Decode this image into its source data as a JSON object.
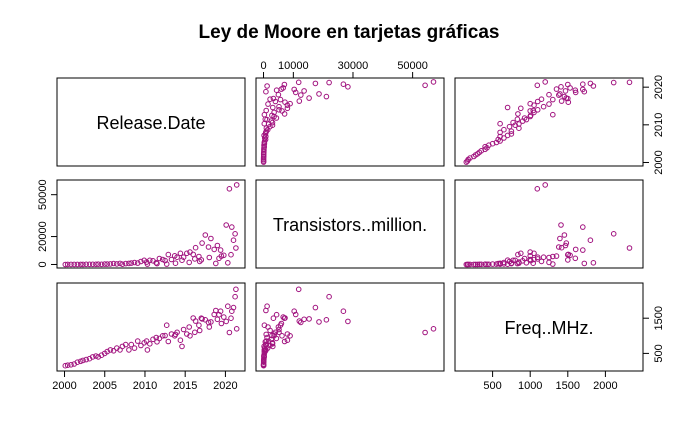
{
  "chart_data": {
    "type": "scatter",
    "title": "Ley de Moore en tarjetas gráficas",
    "variables": [
      {
        "name": "Release.Date",
        "min": 2000,
        "max": 2021.5,
        "ticks": [
          2000,
          2005,
          2010,
          2015,
          2020
        ],
        "tick_labels": [
          "2000",
          "2005",
          "2010",
          "2015",
          "2020"
        ]
      },
      {
        "name": "Transistors..million.",
        "min": 0,
        "max": 58000,
        "ticks": [
          0,
          10000,
          20000,
          30000,
          50000
        ],
        "tick_labels": [
          "0",
          "10000",
          "20000",
          "30000",
          "50000"
        ]
      },
      {
        "name": "Freq..MHz.",
        "min": 100,
        "max": 2400,
        "ticks": [
          500,
          1000,
          1500,
          2000
        ],
        "tick_labels": [
          "500",
          "1000",
          "1500",
          "2000"
        ]
      }
    ],
    "axis_ticks": {
      "top": {
        "variable": 1,
        "ticks": [
          0,
          10000,
          30000,
          50000
        ],
        "tick_labels": [
          "0",
          "10000",
          "30000",
          "50000"
        ]
      },
      "left_1": {
        "variable": 1,
        "ticks": [
          0,
          20000,
          50000
        ],
        "tick_labels": [
          "0",
          "20000",
          "50000"
        ]
      },
      "right_0": {
        "variable": 0,
        "ticks": [
          2000,
          2010,
          2020
        ],
        "tick_labels": [
          "2000",
          "2010",
          "2020"
        ]
      },
      "right_2": {
        "variable": 2,
        "ticks": [
          500,
          1500
        ],
        "tick_labels": [
          "500",
          "1500"
        ]
      },
      "bottom_0": {
        "variable": 0,
        "ticks": [
          2000,
          2005,
          2010,
          2015,
          2020
        ],
        "tick_labels": [
          "2000",
          "2005",
          "2010",
          "2015",
          "2020"
        ]
      },
      "bottom_2": {
        "variable": 2,
        "ticks": [
          500,
          1000,
          1500,
          2000
        ],
        "tick_labels": [
          "500",
          "1000",
          "1500",
          "2000"
        ]
      }
    },
    "point_color": "#a1137f",
    "points": [
      [
        2000.1,
        20,
        150
      ],
      [
        2000.4,
        25,
        166
      ],
      [
        2000.8,
        30,
        175
      ],
      [
        2001.2,
        40,
        200
      ],
      [
        2001.6,
        57,
        250
      ],
      [
        2002.0,
        63,
        275
      ],
      [
        2002.3,
        76,
        300
      ],
      [
        2002.7,
        107,
        325
      ],
      [
        2003.1,
        125,
        350
      ],
      [
        2003.5,
        135,
        400
      ],
      [
        2003.9,
        160,
        425
      ],
      [
        2004.2,
        222,
        400
      ],
      [
        2004.6,
        160,
        450
      ],
      [
        2005.0,
        302,
        500
      ],
      [
        2005.3,
        278,
        550
      ],
      [
        2005.7,
        384,
        600
      ],
      [
        2006.1,
        681,
        575
      ],
      [
        2006.5,
        390,
        650
      ],
      [
        2006.9,
        754,
        600
      ],
      [
        2007.2,
        210,
        700
      ],
      [
        2007.6,
        666,
        750
      ],
      [
        2008.0,
        754,
        600
      ],
      [
        2008.3,
        956,
        750
      ],
      [
        2008.7,
        1400,
        650
      ],
      [
        2009.1,
        959,
        850
      ],
      [
        2009.5,
        2150,
        725
      ],
      [
        2009.9,
        3000,
        800
      ],
      [
        2010.2,
        1700,
        850
      ],
      [
        2010.6,
        3000,
        772
      ],
      [
        2011.0,
        2640,
        900
      ],
      [
        2011.4,
        1170,
        950
      ],
      [
        2011.8,
        4310,
        925
      ],
      [
        2012.2,
        3540,
        1000
      ],
      [
        2012.5,
        2800,
        1006
      ],
      [
        2012.9,
        7080,
        837
      ],
      [
        2013.3,
        3540,
        1050
      ],
      [
        2013.7,
        6200,
        1000
      ],
      [
        2014.0,
        5200,
        1100
      ],
      [
        2014.4,
        8000,
        875
      ],
      [
        2014.8,
        5200,
        1178
      ],
      [
        2015.2,
        8000,
        1050
      ],
      [
        2015.6,
        8900,
        1000
      ],
      [
        2016.0,
        7200,
        1506
      ],
      [
        2016.3,
        12000,
        1417
      ],
      [
        2016.7,
        5700,
        1300
      ],
      [
        2017.1,
        15300,
        1480
      ],
      [
        2017.5,
        21100,
        1455
      ],
      [
        2017.9,
        12500,
        1380
      ],
      [
        2018.2,
        18600,
        1395
      ],
      [
        2018.6,
        10800,
        1605
      ],
      [
        2019.0,
        13600,
        1470
      ],
      [
        2019.4,
        10300,
        1700
      ],
      [
        2019.8,
        6600,
        1530
      ],
      [
        2020.1,
        28300,
        1410
      ],
      [
        2020.5,
        54200,
        1095
      ],
      [
        2020.8,
        26800,
        1700
      ],
      [
        2021.0,
        17400,
        1800
      ],
      [
        2021.2,
        22000,
        2110
      ],
      [
        2021.4,
        57000,
        1200
      ],
      [
        2021.3,
        11800,
        2321
      ],
      [
        2015.5,
        1500,
        1250
      ],
      [
        2017.0,
        3300,
        1500
      ],
      [
        2019.2,
        4400,
        1600
      ],
      [
        2018.8,
        800,
        1720
      ],
      [
        2020.3,
        1200,
        1840
      ],
      [
        2012.7,
        300,
        1300
      ],
      [
        2013.8,
        900,
        1040
      ],
      [
        2016.8,
        2200,
        1150
      ],
      [
        2011.5,
        600,
        830
      ],
      [
        2010.3,
        250,
        600
      ],
      [
        2014.6,
        3100,
        700
      ],
      [
        2016.2,
        4000,
        1100
      ],
      [
        2018.0,
        5000,
        1250
      ],
      [
        2019.5,
        6000,
        1350
      ],
      [
        2020.7,
        7000,
        1500
      ]
    ]
  }
}
